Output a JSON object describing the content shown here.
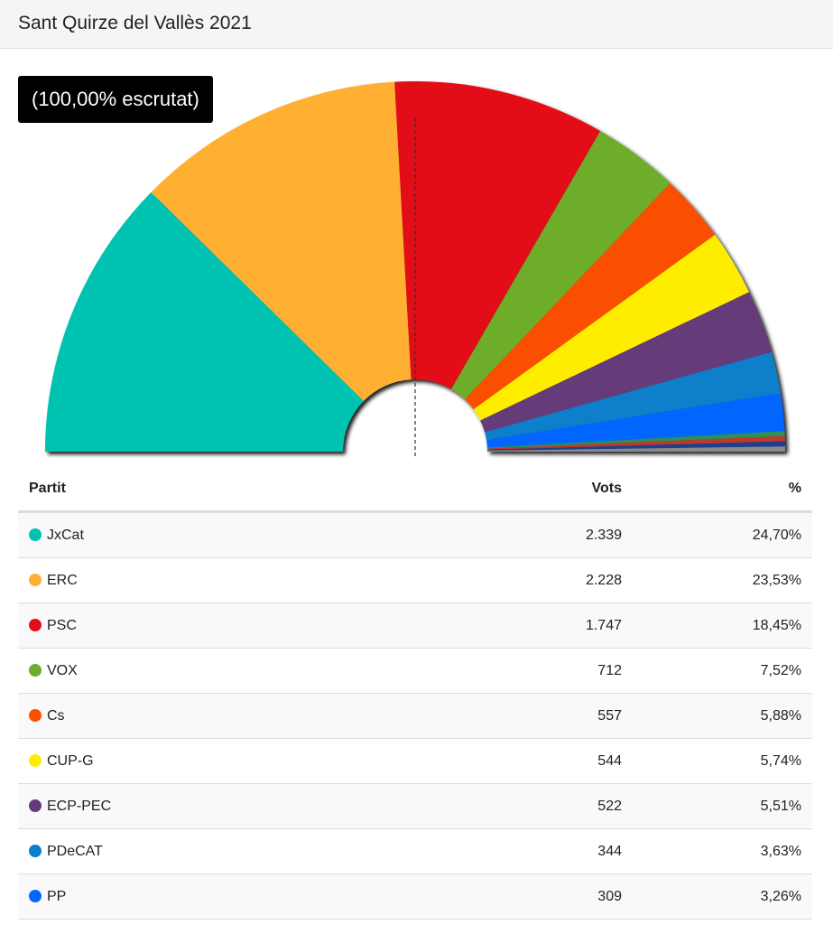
{
  "header": {
    "title": "Sant Quirze del Vallès 2021"
  },
  "badge": {
    "text": "(100,00% escrutat)"
  },
  "table": {
    "col_party": "Partit",
    "col_votes": "Vots",
    "col_pct": "%"
  },
  "chart_data": {
    "type": "pie",
    "subtype": "hemicycle",
    "series": [
      {
        "name": "JxCat",
        "votes": "2.339",
        "pct_label": "24,70%",
        "value": 24.7,
        "color": "#00c2b0"
      },
      {
        "name": "ERC",
        "votes": "2.228",
        "pct_label": "23,53%",
        "value": 23.53,
        "color": "#ffaf33"
      },
      {
        "name": "PSC",
        "votes": "1.747",
        "pct_label": "18,45%",
        "value": 18.45,
        "color": "#e20e19"
      },
      {
        "name": "VOX",
        "votes": "712",
        "pct_label": "7,52%",
        "value": 7.52,
        "color": "#6dad2c"
      },
      {
        "name": "Cs",
        "votes": "557",
        "pct_label": "5,88%",
        "value": 5.88,
        "color": "#fa5000"
      },
      {
        "name": "CUP-G",
        "votes": "544",
        "pct_label": "5,74%",
        "value": 5.74,
        "color": "#ffed00"
      },
      {
        "name": "ECP-PEC",
        "votes": "522",
        "pct_label": "5,51%",
        "value": 5.51,
        "color": "#653a7a"
      },
      {
        "name": "PDeCAT",
        "votes": "344",
        "pct_label": "3,63%",
        "value": 3.63,
        "color": "#0a7fcb"
      },
      {
        "name": "PP",
        "votes": "309",
        "pct_label": "3,26%",
        "value": 3.26,
        "color": "#0066ff"
      }
    ],
    "remainder_colors": [
      "#2f8f5a",
      "#c0392b",
      "#1c3f8e",
      "#8a8a8a"
    ],
    "midline": "dashed"
  }
}
